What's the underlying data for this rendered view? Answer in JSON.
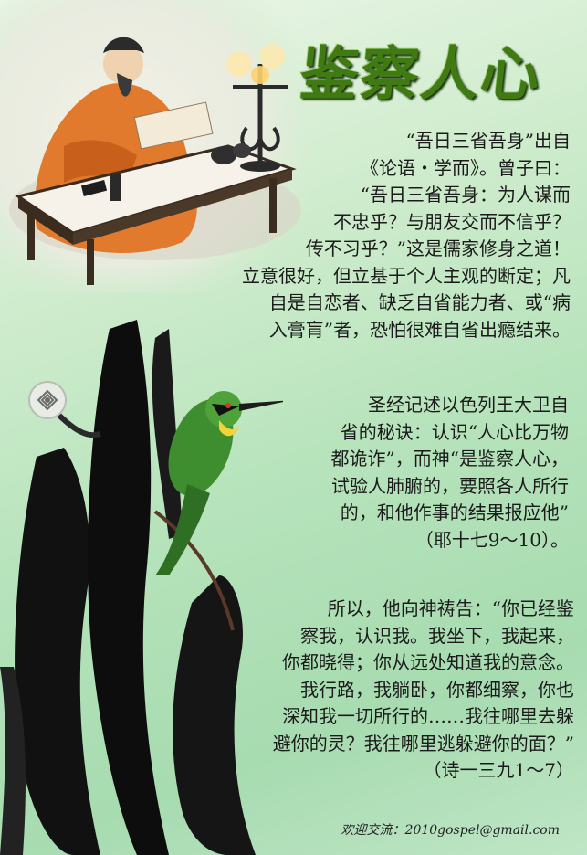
{
  "title": "鉴察人心",
  "paragraph1": [
    "“吾日三省吾身”出自",
    "《论语・学而》。曾子曰：",
    "“吾日三省吾身：为人谋而",
    "不忠乎？与朋友交而不信乎？",
    "传不习乎？”这是儒家修身之道！",
    "立意很好，但立基于个人主观的断定；凡",
    "自是自恋者、缺乏自省能力者、或“病",
    "入膏肓”者，恐怕很难自省出瘾结来。"
  ],
  "paragraph2": [
    "圣经记述以色列王大卫自",
    "省的秘诀：认识“人心比万物",
    "都诡诈”，而神“是鉴察人心，",
    "试验人肺腑的，要照各人所行",
    "的，和他作事的结果报应他”",
    "（耶十七9～10）。"
  ],
  "paragraph3": [
    "所以，他向神祷告：“你已经鉴",
    "察我，认识我。我坐下，我起来，",
    "你都晓得；你从远处知道我的意念。",
    "我行路，我躺卧，你都细察，你也",
    "深知我一切所行的……我往哪里去躲",
    "避你的灵？我往哪里逃躲避你的面？”",
    "（诗一三九1～7）"
  ],
  "contact": "欢迎交流：2010gospel@gmail.com",
  "colors": {
    "title": "#3f7a12",
    "background": "#b6e3bb",
    "ink": "#111111"
  }
}
